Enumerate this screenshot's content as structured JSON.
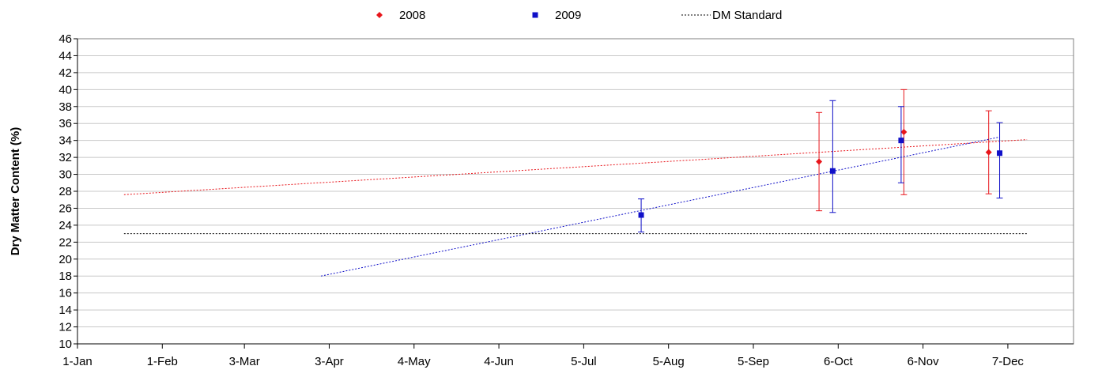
{
  "chart_data": {
    "type": "scatter",
    "title": "",
    "xlabel": "",
    "ylabel": "Dry Matter Content (%)",
    "ylim": [
      10,
      46
    ],
    "ytick_step": 2,
    "xlim": [
      "2009-01-01",
      "2009-12-31"
    ],
    "x_ticks": [
      {
        "date": "2009-01-01",
        "label": "1-Jan"
      },
      {
        "date": "2009-02-01",
        "label": "1-Feb"
      },
      {
        "date": "2009-03-03",
        "label": "3-Mar"
      },
      {
        "date": "2009-04-03",
        "label": "3-Apr"
      },
      {
        "date": "2009-05-04",
        "label": "4-May"
      },
      {
        "date": "2009-06-04",
        "label": "4-Jun"
      },
      {
        "date": "2009-07-05",
        "label": "5-Jul"
      },
      {
        "date": "2009-08-05",
        "label": "5-Aug"
      },
      {
        "date": "2009-09-05",
        "label": "5-Sep"
      },
      {
        "date": "2009-10-06",
        "label": "6-Oct"
      },
      {
        "date": "2009-11-06",
        "label": "6-Nov"
      },
      {
        "date": "2009-12-07",
        "label": "7-Dec"
      }
    ],
    "grid": "horizontal",
    "legend_position": "top",
    "series": [
      {
        "name": "2008",
        "color": "#e8151b",
        "marker": "diamond",
        "points": [
          {
            "x": "2009-09-29",
            "y": 31.5,
            "err_low": 25.7,
            "err_high": 37.3
          },
          {
            "x": "2009-10-30",
            "y": 35.0,
            "err_low": 27.6,
            "err_high": 40.0
          },
          {
            "x": "2009-11-30",
            "y": 32.6,
            "err_low": 27.7,
            "err_high": 37.5
          }
        ],
        "trendline": [
          {
            "x": "2009-01-18",
            "y": 27.6
          },
          {
            "x": "2009-12-14",
            "y": 34.1
          }
        ]
      },
      {
        "name": "2009",
        "color": "#1010c8",
        "marker": "square",
        "points": [
          {
            "x": "2009-07-26",
            "y": 25.2,
            "err_low": 23.2,
            "err_high": 27.1
          },
          {
            "x": "2009-10-04",
            "y": 30.4,
            "err_low": 25.5,
            "err_high": 38.7
          },
          {
            "x": "2009-10-29",
            "y": 34.0,
            "err_low": 29.0,
            "err_high": 38.0
          },
          {
            "x": "2009-12-04",
            "y": 32.5,
            "err_low": 27.2,
            "err_high": 36.1
          }
        ],
        "trendline": [
          {
            "x": "2009-03-31",
            "y": 18.0
          },
          {
            "x": "2009-12-04",
            "y": 34.4
          }
        ]
      },
      {
        "name": "DM Standard",
        "color": "#000000",
        "line": "dotted",
        "points": [
          {
            "x": "2009-01-18",
            "y": 23.0
          },
          {
            "x": "2009-12-14",
            "y": 23.0
          }
        ]
      }
    ]
  }
}
